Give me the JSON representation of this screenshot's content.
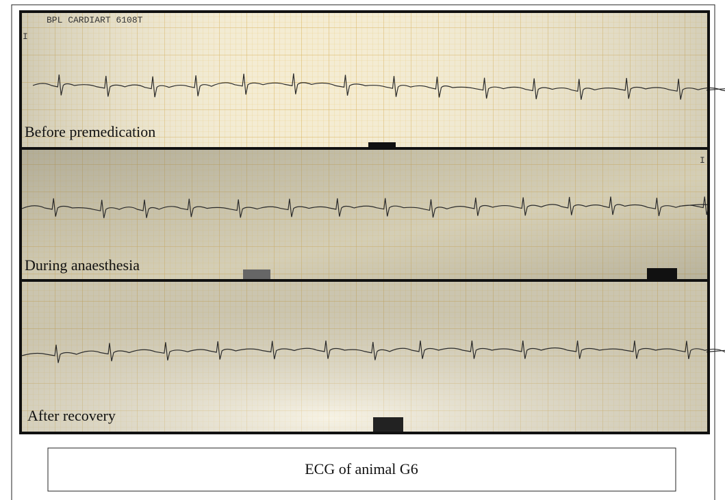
{
  "figure": {
    "panels": [
      {
        "header": "BPL CARDIART 6108T",
        "lead": "I",
        "label": "Before premedication"
      },
      {
        "lead": "I",
        "label": "During anaesthesia"
      },
      {
        "label": "After recovery"
      }
    ],
    "caption": "ECG of animal G6"
  }
}
